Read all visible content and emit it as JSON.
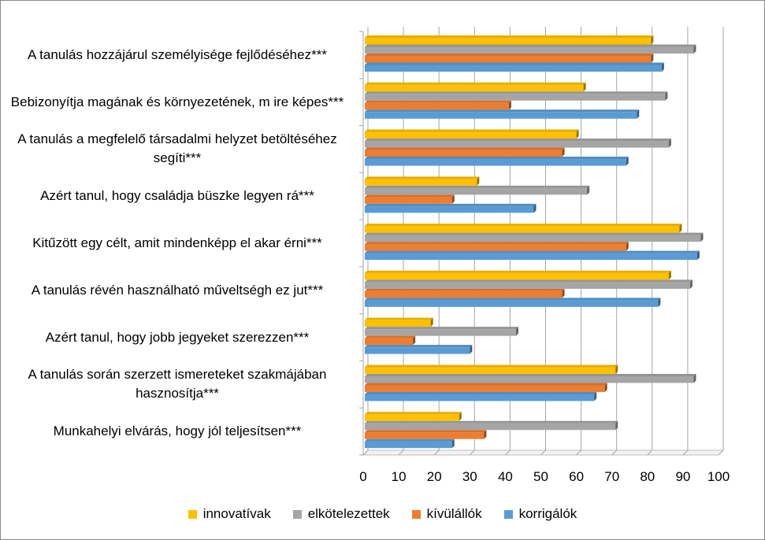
{
  "chart_data": {
    "type": "bar",
    "orientation": "horizontal",
    "categories": [
      "A tanulás hozzájárul személyisége fejlődéséhez***",
      "Bebizonyítja magának és környezetének, m ire képes***",
      "A tanulás a megfelelő társadalmi helyzet betöltéséhez segíti***",
      "Azért tanul, hogy családja büszke legyen rá***",
      "Kitűzött egy célt, amit mindenképp el akar érni***",
      "A tanulás révén használható műveltségh ez jut***",
      "Azért tanul, hogy jobb jegyeket szerezzen***",
      "A tanulás során szerzett ismereteket szakmájában hasznosítja***",
      "Munkahelyi elvárás, hogy jól teljesítsen***"
    ],
    "series": [
      {
        "name": "innovatívak",
        "color": "#FFC000",
        "values": [
          81,
          62,
          60,
          32,
          89,
          86,
          19,
          71,
          27
        ]
      },
      {
        "name": "elkötelezettek",
        "color": "#A5A5A5",
        "values": [
          93,
          85,
          86,
          63,
          95,
          92,
          43,
          93,
          71
        ]
      },
      {
        "name": "kívülállók",
        "color": "#ED7D31",
        "values": [
          81,
          41,
          56,
          25,
          74,
          56,
          14,
          68,
          34
        ]
      },
      {
        "name": "korrigálók",
        "color": "#5B9BD5",
        "values": [
          84,
          77,
          74,
          48,
          94,
          83,
          30,
          65,
          25
        ]
      }
    ],
    "xlim": [
      0,
      100
    ],
    "xticks": [
      "0",
      "10",
      "20",
      "30",
      "40",
      "50",
      "60",
      "70",
      "80",
      "90",
      "100"
    ],
    "grid": true,
    "legend_position": "bottom"
  }
}
